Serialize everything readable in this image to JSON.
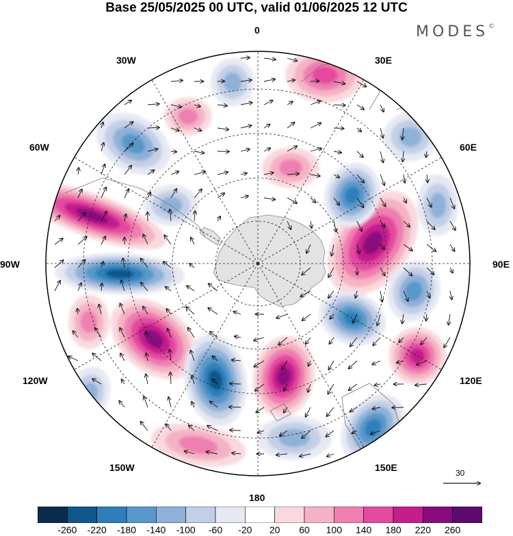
{
  "header": {
    "title": "Base 25/05/2025 00 UTC, valid 01/06/2025 12 UTC",
    "brand": "MODES",
    "brand_mark": "©"
  },
  "map": {
    "projection": "south-polar-stereographic",
    "longitude_labels": {
      "lon_0": "0",
      "lon_30e": "30E",
      "lon_60e": "60E",
      "lon_90e": "90E",
      "lon_120e": "120E",
      "lon_150e": "150E",
      "lon_180": "180",
      "lon_150w": "150W",
      "lon_120w": "120W",
      "lon_90w": "90W",
      "lon_60w": "60W",
      "lon_30w": "30W"
    },
    "vector_reference": {
      "label": "30"
    },
    "colors": {
      "land": "#e3e3e3",
      "coast": "#888888",
      "grid": "#222222",
      "arrow": "#111111"
    }
  },
  "colorbar": {
    "ticks": [
      "-260",
      "-220",
      "-180",
      "-140",
      "-100",
      "-60",
      "-20",
      "20",
      "60",
      "100",
      "140",
      "180",
      "220",
      "260"
    ],
    "colors": [
      "#0b2c4d",
      "#11578c",
      "#2d7fbb",
      "#5898c9",
      "#8fb1d8",
      "#c2cfe6",
      "#e6e8f3",
      "#ffffff",
      "#f9d9df",
      "#f4b3c4",
      "#ef7fb1",
      "#e44a9f",
      "#c41e8d",
      "#8a0b7e",
      "#5b0a6f"
    ]
  }
}
